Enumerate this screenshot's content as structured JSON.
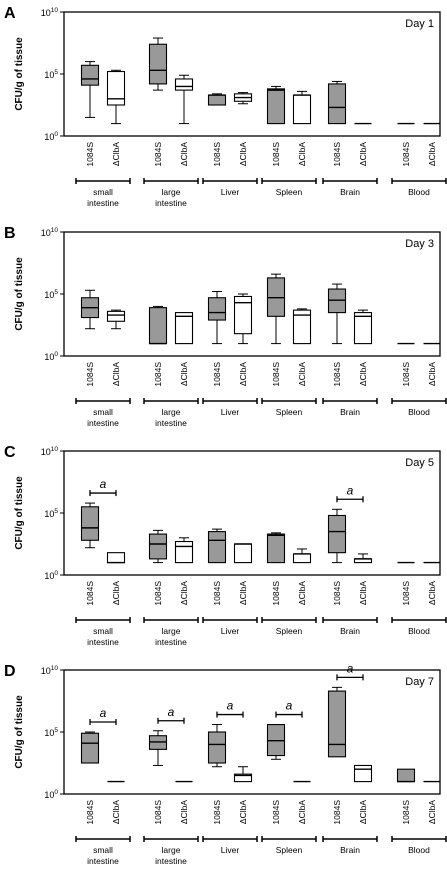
{
  "figure": {
    "ylabel": "CFU/g of tissue",
    "yticks": [
      {
        "value": 0,
        "base": "10",
        "exp": "0"
      },
      {
        "value": 5,
        "base": "10",
        "exp": "5"
      },
      {
        "value": 10,
        "base": "10",
        "exp": "10"
      }
    ],
    "strain_labels": [
      "1084S",
      "ΔClbA"
    ],
    "tissues": [
      [
        "small",
        "intestine"
      ],
      [
        "large",
        "intestine"
      ],
      [
        "Liver"
      ],
      [
        "Spleen"
      ],
      [
        "Brain"
      ],
      [
        "Blood"
      ]
    ],
    "colors": {
      "wt_fill": "#999999",
      "mutant_fill": "#ffffff",
      "stroke": "#000000"
    }
  },
  "chart_data": [
    {
      "type": "box",
      "panel_letter": "A",
      "day_label": "Day 1",
      "y_scale": "log10",
      "ylim": [
        0,
        10
      ],
      "series": [
        {
          "name": "1084S",
          "boxes": [
            {
              "tissue": "small intestine",
              "min": 1.5,
              "q1": 4.1,
              "median": 4.6,
              "q3": 5.7,
              "max": 6.0
            },
            {
              "tissue": "large intestine",
              "min": 3.7,
              "q1": 4.2,
              "median": 5.3,
              "q3": 7.4,
              "max": 7.9
            },
            {
              "tissue": "Liver",
              "min": 2.5,
              "q1": 2.5,
              "median": 3.3,
              "q3": 3.3,
              "max": 3.4
            },
            {
              "tissue": "Spleen",
              "min": 1.0,
              "q1": 1.0,
              "median": 3.7,
              "q3": 3.8,
              "max": 4.0
            },
            {
              "tissue": "Brain",
              "min": 1.0,
              "q1": 1.0,
              "median": 2.3,
              "q3": 4.2,
              "max": 4.4
            },
            {
              "tissue": "Blood",
              "min": 1.0,
              "q1": 1.0,
              "median": 1.0,
              "q3": 1.0,
              "max": 1.0
            }
          ]
        },
        {
          "name": "ΔClbA",
          "boxes": [
            {
              "tissue": "small intestine",
              "min": 1.0,
              "q1": 2.5,
              "median": 3.0,
              "q3": 5.2,
              "max": 5.3
            },
            {
              "tissue": "large intestine",
              "min": 1.0,
              "q1": 3.7,
              "median": 4.0,
              "q3": 4.6,
              "max": 4.9
            },
            {
              "tissue": "Liver",
              "min": 2.6,
              "q1": 2.8,
              "median": 3.1,
              "q3": 3.4,
              "max": 3.5
            },
            {
              "tissue": "Spleen",
              "min": 1.0,
              "q1": 1.0,
              "median": 3.3,
              "q3": 3.3,
              "max": 3.6
            },
            {
              "tissue": "Brain",
              "min": 1.0,
              "q1": 1.0,
              "median": 1.0,
              "q3": 1.0,
              "max": 1.0
            },
            {
              "tissue": "Blood",
              "min": 1.0,
              "q1": 1.0,
              "median": 1.0,
              "q3": 1.0,
              "max": 1.0
            }
          ]
        }
      ],
      "significance": []
    },
    {
      "type": "box",
      "panel_letter": "B",
      "day_label": "Day 3",
      "y_scale": "log10",
      "ylim": [
        0,
        10
      ],
      "series": [
        {
          "name": "1084S",
          "boxes": [
            {
              "tissue": "small intestine",
              "min": 2.2,
              "q1": 3.1,
              "median": 3.9,
              "q3": 4.7,
              "max": 5.3
            },
            {
              "tissue": "large intestine",
              "min": 1.0,
              "q1": 1.0,
              "median": 1.0,
              "q3": 3.9,
              "max": 4.0
            },
            {
              "tissue": "Liver",
              "min": 1.0,
              "q1": 2.9,
              "median": 3.5,
              "q3": 4.7,
              "max": 5.2
            },
            {
              "tissue": "Spleen",
              "min": 1.0,
              "q1": 3.2,
              "median": 4.7,
              "q3": 6.3,
              "max": 6.6
            },
            {
              "tissue": "Brain",
              "min": 1.0,
              "q1": 3.5,
              "median": 4.5,
              "q3": 5.4,
              "max": 5.8
            },
            {
              "tissue": "Blood",
              "min": 1.0,
              "q1": 1.0,
              "median": 1.0,
              "q3": 1.0,
              "max": 1.0
            }
          ]
        },
        {
          "name": "ΔClbA",
          "boxes": [
            {
              "tissue": "small intestine",
              "min": 2.2,
              "q1": 2.8,
              "median": 3.3,
              "q3": 3.6,
              "max": 3.7
            },
            {
              "tissue": "large intestine",
              "min": 1.0,
              "q1": 1.0,
              "median": 3.2,
              "q3": 3.5,
              "max": 3.5
            },
            {
              "tissue": "Liver",
              "min": 1.0,
              "q1": 1.8,
              "median": 4.3,
              "q3": 4.8,
              "max": 5.0
            },
            {
              "tissue": "Spleen",
              "min": 1.0,
              "q1": 1.0,
              "median": 3.3,
              "q3": 3.7,
              "max": 3.8
            },
            {
              "tissue": "Brain",
              "min": 1.0,
              "q1": 1.0,
              "median": 3.2,
              "q3": 3.5,
              "max": 3.7
            },
            {
              "tissue": "Blood",
              "min": 1.0,
              "q1": 1.0,
              "median": 1.0,
              "q3": 1.0,
              "max": 1.0
            }
          ]
        }
      ],
      "significance": []
    },
    {
      "type": "box",
      "panel_letter": "C",
      "day_label": "Day 5",
      "y_scale": "log10",
      "ylim": [
        0,
        10
      ],
      "series": [
        {
          "name": "1084S",
          "boxes": [
            {
              "tissue": "small intestine",
              "min": 2.2,
              "q1": 2.8,
              "median": 3.8,
              "q3": 5.5,
              "max": 5.8
            },
            {
              "tissue": "large intestine",
              "min": 1.0,
              "q1": 1.3,
              "median": 2.5,
              "q3": 3.3,
              "max": 3.6
            },
            {
              "tissue": "Liver",
              "min": 1.0,
              "q1": 1.0,
              "median": 2.8,
              "q3": 3.5,
              "max": 3.7
            },
            {
              "tissue": "Spleen",
              "min": 1.0,
              "q1": 1.0,
              "median": 3.2,
              "q3": 3.3,
              "max": 3.4
            },
            {
              "tissue": "Brain",
              "min": 1.0,
              "q1": 1.8,
              "median": 3.5,
              "q3": 4.8,
              "max": 5.3
            },
            {
              "tissue": "Blood",
              "min": 1.0,
              "q1": 1.0,
              "median": 1.0,
              "q3": 1.0,
              "max": 1.0
            }
          ]
        },
        {
          "name": "ΔClbA",
          "boxes": [
            {
              "tissue": "small intestine",
              "min": 1.0,
              "q1": 1.0,
              "median": 1.0,
              "q3": 1.8,
              "max": 1.8
            },
            {
              "tissue": "large intestine",
              "min": 1.0,
              "q1": 1.0,
              "median": 2.3,
              "q3": 2.7,
              "max": 3.0
            },
            {
              "tissue": "Liver",
              "min": 1.0,
              "q1": 1.0,
              "median": 2.5,
              "q3": 2.5,
              "max": 2.5
            },
            {
              "tissue": "Spleen",
              "min": 1.0,
              "q1": 1.0,
              "median": 1.7,
              "q3": 1.7,
              "max": 2.1
            },
            {
              "tissue": "Brain",
              "min": 1.0,
              "q1": 1.0,
              "median": 1.3,
              "q3": 1.3,
              "max": 1.7
            },
            {
              "tissue": "Blood",
              "min": 1.0,
              "q1": 1.0,
              "median": 1.0,
              "q3": 1.0,
              "max": 1.0
            }
          ]
        }
      ],
      "significance": [
        {
          "tissue": "small intestine",
          "label": "a"
        },
        {
          "tissue": "Brain",
          "label": "a"
        }
      ]
    },
    {
      "type": "box",
      "panel_letter": "D",
      "day_label": "Day 7",
      "y_scale": "log10",
      "ylim": [
        0,
        10
      ],
      "series": [
        {
          "name": "1084S",
          "boxes": [
            {
              "tissue": "small intestine",
              "min": 2.5,
              "q1": 2.5,
              "median": 4.1,
              "q3": 4.9,
              "max": 5.0
            },
            {
              "tissue": "large intestine",
              "min": 2.3,
              "q1": 3.6,
              "median": 4.2,
              "q3": 4.7,
              "max": 5.1
            },
            {
              "tissue": "Liver",
              "min": 2.2,
              "q1": 2.5,
              "median": 4.0,
              "q3": 5.0,
              "max": 5.6
            },
            {
              "tissue": "Spleen",
              "min": 2.8,
              "q1": 3.1,
              "median": 4.3,
              "q3": 5.6,
              "max": 5.6
            },
            {
              "tissue": "Brain",
              "min": 3.0,
              "q1": 3.0,
              "median": 4.0,
              "q3": 8.3,
              "max": 8.6
            },
            {
              "tissue": "Blood",
              "min": 1.0,
              "q1": 1.0,
              "median": 1.0,
              "q3": 2.0,
              "max": 2.0
            }
          ]
        },
        {
          "name": "ΔClbA",
          "boxes": [
            {
              "tissue": "small intestine",
              "min": 1.0,
              "q1": 1.0,
              "median": 1.0,
              "q3": 1.0,
              "max": 1.0
            },
            {
              "tissue": "large intestine",
              "min": 1.0,
              "q1": 1.0,
              "median": 1.0,
              "q3": 1.0,
              "max": 1.0
            },
            {
              "tissue": "Liver",
              "min": 1.0,
              "q1": 1.0,
              "median": 1.5,
              "q3": 1.6,
              "max": 2.2
            },
            {
              "tissue": "Spleen",
              "min": 1.0,
              "q1": 1.0,
              "median": 1.0,
              "q3": 1.0,
              "max": 1.0
            },
            {
              "tissue": "Brain",
              "min": 1.0,
              "q1": 1.0,
              "median": 2.0,
              "q3": 2.3,
              "max": 2.3
            },
            {
              "tissue": "Blood",
              "min": 1.0,
              "q1": 1.0,
              "median": 1.0,
              "q3": 1.0,
              "max": 1.0
            }
          ]
        }
      ],
      "significance": [
        {
          "tissue": "small intestine",
          "label": "a"
        },
        {
          "tissue": "large intestine",
          "label": "a"
        },
        {
          "tissue": "Liver",
          "label": "a"
        },
        {
          "tissue": "Spleen",
          "label": "a"
        },
        {
          "tissue": "Brain",
          "label": "a"
        }
      ]
    }
  ]
}
